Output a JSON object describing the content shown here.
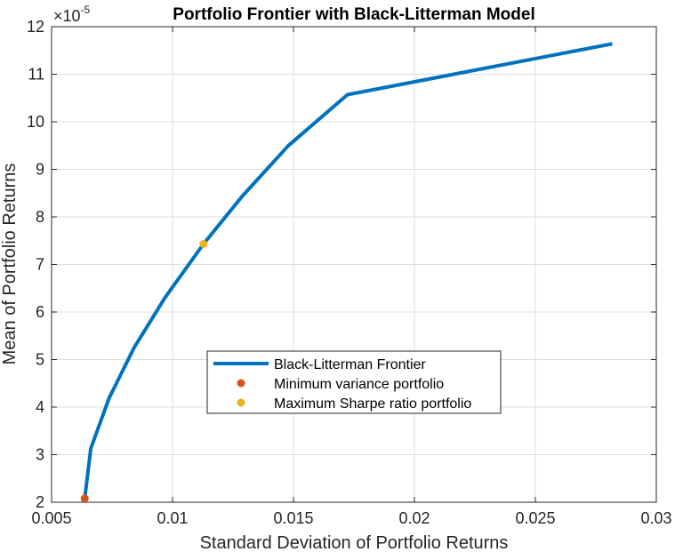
{
  "chart_data": {
    "type": "line",
    "title": "Portfolio Frontier with Black-Litterman Model",
    "xlabel": "Standard Deviation of Portfolio Returns",
    "ylabel": "Mean of Portfolio Returns",
    "xlim": [
      0.005,
      0.03
    ],
    "ylim": [
      2,
      12
    ],
    "y_exponent": "-5",
    "y_exponent_base": "×10",
    "xticks": [
      0.005,
      0.01,
      0.015,
      0.02,
      0.025,
      0.03
    ],
    "xtick_labels": [
      "0.005",
      "0.01",
      "0.015",
      "0.02",
      "0.025",
      "0.03"
    ],
    "yticks": [
      2,
      3,
      4,
      5,
      6,
      7,
      8,
      9,
      10,
      11,
      12
    ],
    "ytick_labels": [
      "2",
      "3",
      "4",
      "5",
      "6",
      "7",
      "8",
      "9",
      "10",
      "11",
      "12"
    ],
    "grid": true,
    "legend_position": "center",
    "series": [
      {
        "name": "Black-Litterman Frontier",
        "kind": "line",
        "color": "#0072BD",
        "x": [
          0.00637,
          0.00662,
          0.00738,
          0.00841,
          0.0097,
          0.01128,
          0.01289,
          0.01479,
          0.01723,
          0.02818
        ],
        "y": [
          2.08,
          3.13,
          4.19,
          5.25,
          6.31,
          7.43,
          8.44,
          9.5,
          10.57,
          11.64
        ]
      },
      {
        "name": "Minimum variance portfolio",
        "kind": "point",
        "color": "#D95319",
        "x": [
          0.00637
        ],
        "y": [
          2.08
        ]
      },
      {
        "name": "Maximum Sharpe ratio portfolio",
        "kind": "point",
        "color": "#EDB120",
        "x": [
          0.01128
        ],
        "y": [
          7.43
        ]
      }
    ]
  }
}
